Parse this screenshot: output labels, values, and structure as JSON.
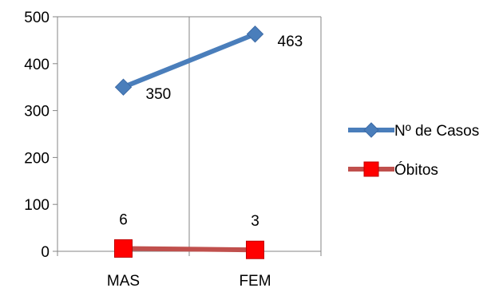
{
  "chart_data": {
    "type": "line",
    "categories": [
      "MAS",
      "FEM"
    ],
    "series": [
      {
        "name": "Nº de Casos",
        "values": [
          350,
          463
        ],
        "color": "#4a7ebb",
        "marker": "diamond",
        "marker_color": "#4a7ebb"
      },
      {
        "name": "Óbitos",
        "values": [
          6,
          3
        ],
        "color": "#c0504d",
        "marker": "square",
        "marker_color": "#ff0000"
      }
    ],
    "yticks": [
      0,
      100,
      200,
      300,
      400,
      500
    ],
    "ylim": [
      0,
      500
    ],
    "grid": {
      "vertical": true,
      "horizontal": false
    },
    "legend_position": "right",
    "title": "",
    "xlabel": "",
    "ylabel": ""
  }
}
